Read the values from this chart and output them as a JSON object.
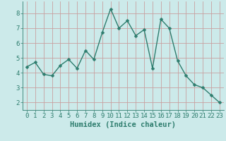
{
  "x": [
    0,
    1,
    2,
    3,
    4,
    5,
    6,
    7,
    8,
    9,
    10,
    11,
    12,
    13,
    14,
    15,
    16,
    17,
    18,
    19,
    20,
    21,
    22,
    23
  ],
  "y": [
    4.4,
    4.7,
    3.9,
    3.8,
    4.5,
    4.9,
    4.3,
    5.5,
    4.9,
    6.7,
    8.3,
    7.0,
    7.5,
    6.5,
    6.9,
    4.3,
    7.6,
    7.0,
    4.8,
    3.8,
    3.2,
    3.0,
    2.5,
    2.0
  ],
  "line_color": "#2e7d6e",
  "marker": "D",
  "marker_size": 2.5,
  "bg_color": "#cceaea",
  "grid_color": "#c8a0a0",
  "axis_color": "#2e7d6e",
  "xlabel": "Humidex (Indice chaleur)",
  "xlim": [
    -0.5,
    23.5
  ],
  "ylim": [
    1.5,
    8.8
  ],
  "yticks": [
    2,
    3,
    4,
    5,
    6,
    7,
    8
  ],
  "xticks": [
    0,
    1,
    2,
    3,
    4,
    5,
    6,
    7,
    8,
    9,
    10,
    11,
    12,
    13,
    14,
    15,
    16,
    17,
    18,
    19,
    20,
    21,
    22,
    23
  ],
  "tick_fontsize": 6.5,
  "xlabel_fontsize": 7.5,
  "linewidth": 1.0
}
